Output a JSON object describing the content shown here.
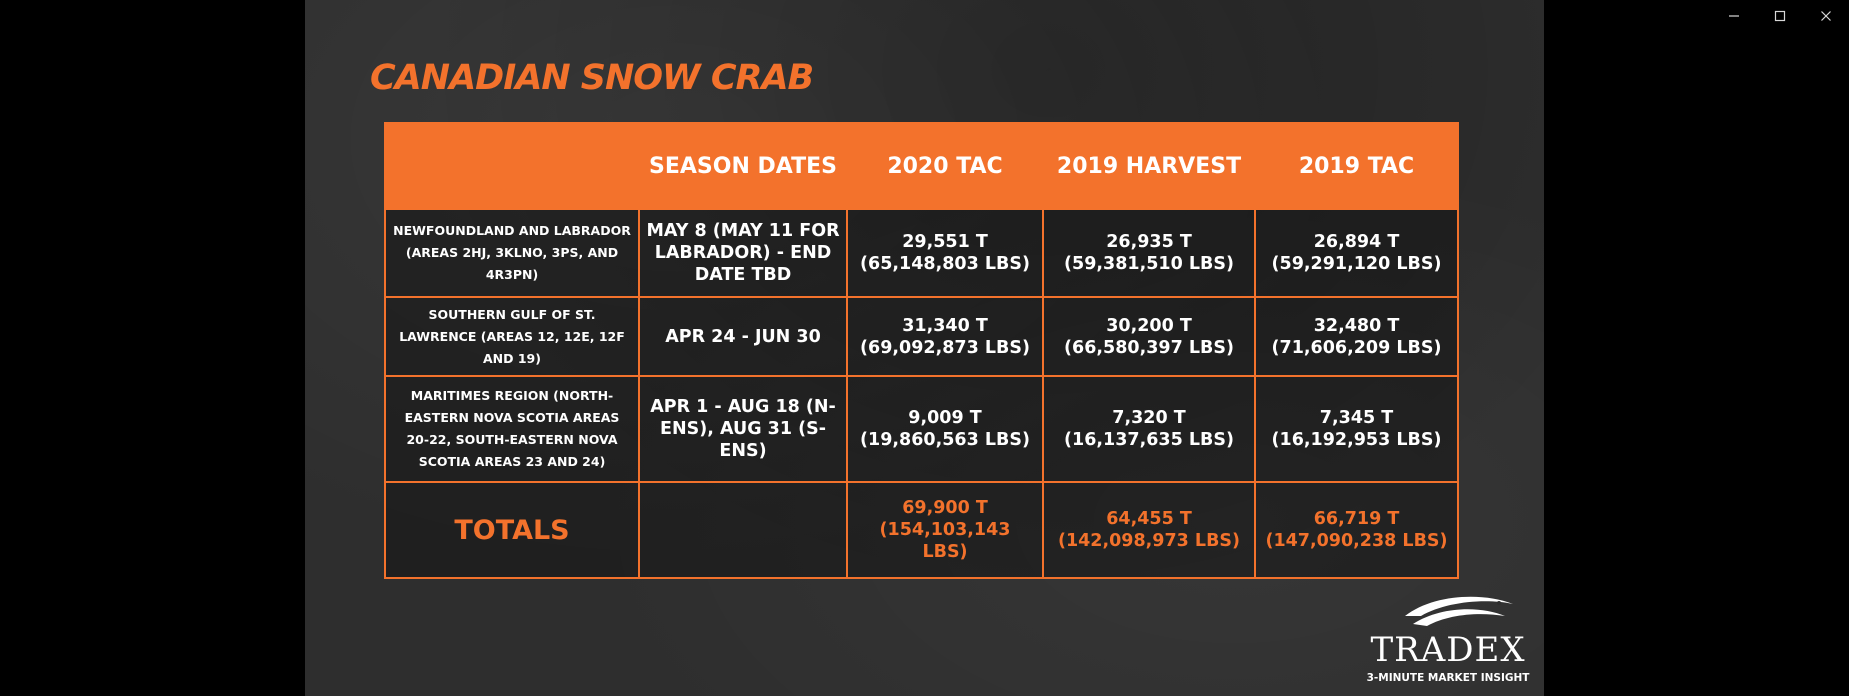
{
  "window": {
    "controls": [
      "minimize-icon",
      "maximize-icon",
      "close-icon"
    ]
  },
  "slide": {
    "title": "CANADIAN SNOW CRAB",
    "accent": "#f3722c"
  },
  "table": {
    "headers": [
      "",
      "SEASON DATES",
      "2020 TAC",
      "2019 HARVEST",
      "2019 TAC"
    ],
    "rows": [
      {
        "region": "NEWFOUNDLAND AND LABRADOR (AREAS 2HJ, 3KLNO, 3PS, AND 4R3PN)",
        "dates": "MAY 8 (MAY 11 FOR LABRADOR) - END DATE TBD",
        "tac2020": "29,551 T (65,148,803 LBS)",
        "harvest2019": "26,935 T (59,381,510 LBS)",
        "tac2019": "26,894 T (59,291,120 LBS)"
      },
      {
        "region": "SOUTHERN GULF OF ST. LAWRENCE (AREAS 12, 12E, 12F AND 19)",
        "dates": "APR 24 - JUN 30",
        "tac2020": "31,340 T (69,092,873 LBS)",
        "harvest2019": "30,200 T (66,580,397 LBS)",
        "tac2019": "32,480 T (71,606,209 LBS)"
      },
      {
        "region": "MARITIMES REGION (NORTH-EASTERN NOVA SCOTIA AREAS 20-22, SOUTH-EASTERN NOVA SCOTIA AREAS 23 AND 24)",
        "dates": "APR 1 - AUG 18 (N-ENS), AUG 31 (S-ENS)",
        "tac2020": "9,009 T (19,860,563 LBS)",
        "harvest2019": "7,320 T (16,137,635 LBS)",
        "tac2019": "7,345 T (16,192,953 LBS)"
      }
    ],
    "totals": {
      "label": "TOTALS",
      "dates": "",
      "tac2020": "69,900 T (154,103,143 LBS)",
      "harvest2019": "64,455 T (142,098,973 LBS)",
      "tac2019": "66,719 T (147,090,238 LBS)"
    }
  },
  "logo": {
    "wordmark": "TRADEX",
    "tagline": "3-MINUTE MARKET INSIGHT",
    "icon": "fish-swoosh-icon"
  }
}
